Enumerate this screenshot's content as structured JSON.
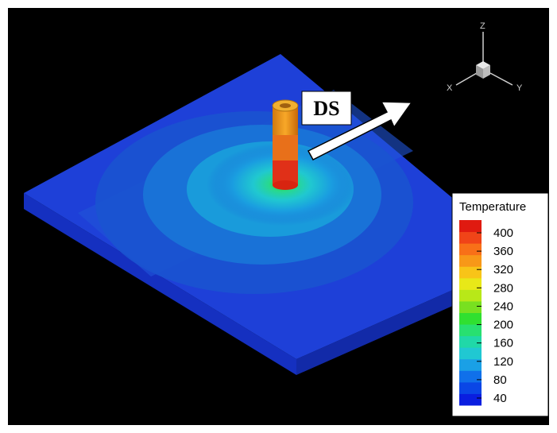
{
  "figure": {
    "annotation_label": "DS",
    "orientation_axes": {
      "z": "Z",
      "x": "X",
      "y": "Y"
    }
  },
  "legend": {
    "title": "Temperature",
    "ticks": [
      "400",
      "360",
      "320",
      "280",
      "240",
      "200",
      "160",
      "120",
      "80",
      "40"
    ],
    "colors": [
      "#0a1ee0",
      "#0a46e6",
      "#1070ea",
      "#1aa0e6",
      "#20c8d2",
      "#20d8a8",
      "#28e070",
      "#30e030",
      "#78e020",
      "#b8e818",
      "#e8e818",
      "#f8c418",
      "#f89818",
      "#f87018",
      "#f04418",
      "#e01a10"
    ]
  },
  "colors": {
    "background": "#000000",
    "frame": "#ffffff",
    "plate_top": "#1d3fd8",
    "plate_side": "#1432b8"
  }
}
